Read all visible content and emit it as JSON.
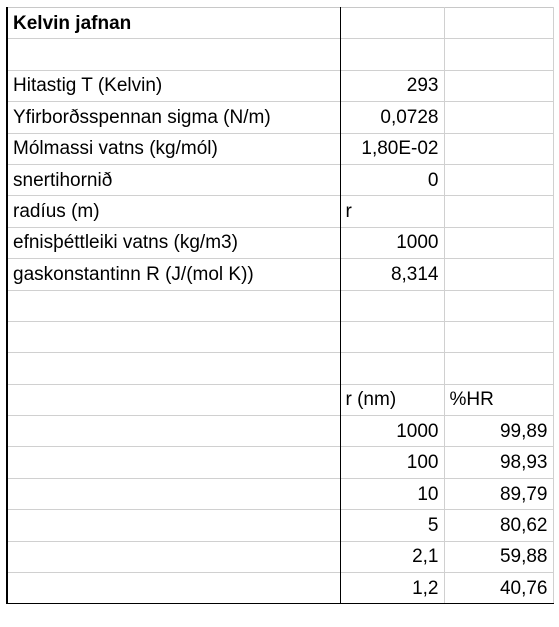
{
  "sheet": {
    "title": "Kelvin jafnan",
    "parameters": [
      {
        "label": "Hitastig T (Kelvin)",
        "value": "293"
      },
      {
        "label": "Yfirborðsspennan sigma (N/m)",
        "value": "0,0728"
      },
      {
        "label": "Mólmassi vatns (kg/mól)",
        "value": "1,80E-02"
      },
      {
        "label": "snertihornið",
        "value": "0"
      },
      {
        "label": "radíus (m)",
        "value": "r"
      },
      {
        "label": "efnisþéttleiki vatns (kg/m3)",
        "value": "1000"
      },
      {
        "label": "gaskonstantinn R (J/(mol K))",
        "value": "8,314"
      }
    ],
    "results": {
      "header_r": "r (nm)",
      "header_hr": "%HR",
      "rows": [
        {
          "r": "1000",
          "hr": "99,89"
        },
        {
          "r": "100",
          "hr": "98,93"
        },
        {
          "r": "10",
          "hr": "89,79"
        },
        {
          "r": "5",
          "hr": "80,62"
        },
        {
          "r": "2,1",
          "hr": "59,88"
        },
        {
          "r": "1,2",
          "hr": "40,76"
        }
      ]
    }
  }
}
